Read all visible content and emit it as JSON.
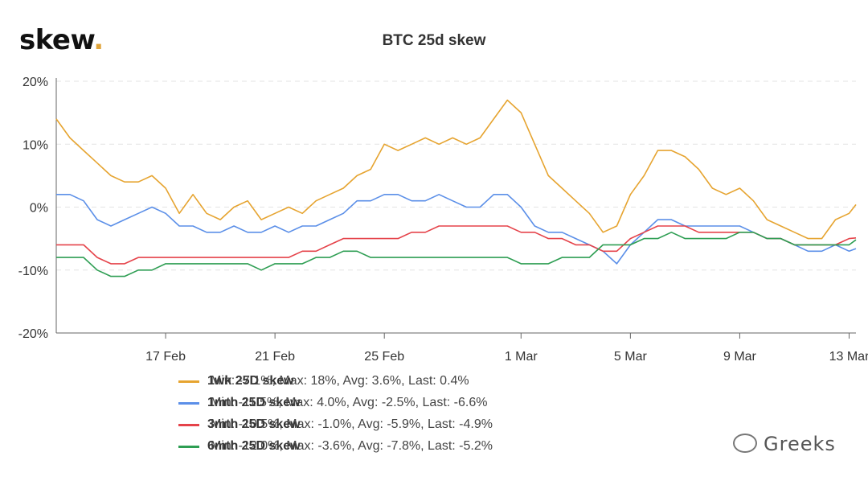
{
  "brand": {
    "name": "skew",
    "dot": "."
  },
  "watermark": {
    "text": "Greeks",
    "icon": "wechat-icon"
  },
  "chart_data": {
    "type": "line",
    "title": "BTC 25d skew",
    "xlabel": "",
    "ylabel": "",
    "ylim": [
      -20,
      20
    ],
    "yticks": [
      -20,
      -10,
      0,
      10,
      20
    ],
    "ytick_labels": [
      "-20%",
      "-10%",
      "0%",
      "10%",
      "20%"
    ],
    "xlim": [
      "2020-02-13",
      "2020-03-13"
    ],
    "xtick_labels": [
      {
        "date": "2020-02-17",
        "label": "17 Feb"
      },
      {
        "date": "2020-02-21",
        "label": "21 Feb"
      },
      {
        "date": "2020-02-25",
        "label": "25 Feb"
      },
      {
        "date": "2020-03-01",
        "label": "1 Mar"
      },
      {
        "date": "2020-03-05",
        "label": "5 Mar"
      },
      {
        "date": "2020-03-09",
        "label": "9 Mar"
      },
      {
        "date": "2020-03-13",
        "label": "13 Mar"
      }
    ],
    "grid": "horizontal dashed",
    "legend_position": "bottom",
    "series": [
      {
        "name": "1wk 25D skew",
        "color": "#e6a430",
        "stats": "Min: -7.1%, Max: 18%, Avg: 3.6%, Last: 0.4%",
        "points": [
          [
            "2020-02-13 00:00",
            14
          ],
          [
            "2020-02-13 12:00",
            11
          ],
          [
            "2020-02-14 00:00",
            9
          ],
          [
            "2020-02-14 12:00",
            7
          ],
          [
            "2020-02-15 00:00",
            5
          ],
          [
            "2020-02-15 12:00",
            4
          ],
          [
            "2020-02-16 00:00",
            4
          ],
          [
            "2020-02-16 12:00",
            5
          ],
          [
            "2020-02-17 00:00",
            3
          ],
          [
            "2020-02-17 12:00",
            -1
          ],
          [
            "2020-02-18 00:00",
            2
          ],
          [
            "2020-02-18 12:00",
            -1
          ],
          [
            "2020-02-19 00:00",
            -2
          ],
          [
            "2020-02-19 12:00",
            0
          ],
          [
            "2020-02-20 00:00",
            1
          ],
          [
            "2020-02-20 12:00",
            -2
          ],
          [
            "2020-02-21 00:00",
            -1
          ],
          [
            "2020-02-21 12:00",
            0
          ],
          [
            "2020-02-22 00:00",
            -1
          ],
          [
            "2020-02-22 12:00",
            1
          ],
          [
            "2020-02-23 00:00",
            2
          ],
          [
            "2020-02-23 12:00",
            3
          ],
          [
            "2020-02-24 00:00",
            5
          ],
          [
            "2020-02-24 12:00",
            6
          ],
          [
            "2020-02-25 00:00",
            10
          ],
          [
            "2020-02-25 12:00",
            9
          ],
          [
            "2020-02-26 00:00",
            10
          ],
          [
            "2020-02-26 12:00",
            11
          ],
          [
            "2020-02-27 00:00",
            10
          ],
          [
            "2020-02-27 12:00",
            11
          ],
          [
            "2020-02-28 00:00",
            10
          ],
          [
            "2020-02-28 12:00",
            11
          ],
          [
            "2020-02-29 00:00",
            14
          ],
          [
            "2020-02-29 12:00",
            17
          ],
          [
            "2020-03-01 00:00",
            15
          ],
          [
            "2020-03-01 12:00",
            10
          ],
          [
            "2020-03-02 00:00",
            5
          ],
          [
            "2020-03-02 12:00",
            3
          ],
          [
            "2020-03-03 00:00",
            1
          ],
          [
            "2020-03-03 12:00",
            -1
          ],
          [
            "2020-03-04 00:00",
            -4
          ],
          [
            "2020-03-04 12:00",
            -3
          ],
          [
            "2020-03-05 00:00",
            2
          ],
          [
            "2020-03-05 12:00",
            5
          ],
          [
            "2020-03-06 00:00",
            9
          ],
          [
            "2020-03-06 12:00",
            9
          ],
          [
            "2020-03-07 00:00",
            8
          ],
          [
            "2020-03-07 12:00",
            6
          ],
          [
            "2020-03-08 00:00",
            3
          ],
          [
            "2020-03-08 12:00",
            2
          ],
          [
            "2020-03-09 00:00",
            3
          ],
          [
            "2020-03-09 12:00",
            1
          ],
          [
            "2020-03-10 00:00",
            -2
          ],
          [
            "2020-03-10 12:00",
            -3
          ],
          [
            "2020-03-11 00:00",
            -4
          ],
          [
            "2020-03-11 12:00",
            -5
          ],
          [
            "2020-03-12 00:00",
            -5
          ],
          [
            "2020-03-12 12:00",
            -2
          ],
          [
            "2020-03-13 00:00",
            -1
          ],
          [
            "2020-03-13 06:00",
            0.4
          ]
        ]
      },
      {
        "name": "1mth 25D skew",
        "color": "#5b8fe8",
        "stats": "Min: -11.5%, Max: 4.0%, Avg: -2.5%, Last: -6.6%",
        "points": [
          [
            "2020-02-13 00:00",
            2
          ],
          [
            "2020-02-13 12:00",
            2
          ],
          [
            "2020-02-14 00:00",
            1
          ],
          [
            "2020-02-14 12:00",
            -2
          ],
          [
            "2020-02-15 00:00",
            -3
          ],
          [
            "2020-02-15 12:00",
            -2
          ],
          [
            "2020-02-16 00:00",
            -1
          ],
          [
            "2020-02-16 12:00",
            0
          ],
          [
            "2020-02-17 00:00",
            -1
          ],
          [
            "2020-02-17 12:00",
            -3
          ],
          [
            "2020-02-18 00:00",
            -3
          ],
          [
            "2020-02-18 12:00",
            -4
          ],
          [
            "2020-02-19 00:00",
            -4
          ],
          [
            "2020-02-19 12:00",
            -3
          ],
          [
            "2020-02-20 00:00",
            -4
          ],
          [
            "2020-02-20 12:00",
            -4
          ],
          [
            "2020-02-21 00:00",
            -3
          ],
          [
            "2020-02-21 12:00",
            -4
          ],
          [
            "2020-02-22 00:00",
            -3
          ],
          [
            "2020-02-22 12:00",
            -3
          ],
          [
            "2020-02-23 00:00",
            -2
          ],
          [
            "2020-02-23 12:00",
            -1
          ],
          [
            "2020-02-24 00:00",
            1
          ],
          [
            "2020-02-24 12:00",
            1
          ],
          [
            "2020-02-25 00:00",
            2
          ],
          [
            "2020-02-25 12:00",
            2
          ],
          [
            "2020-02-26 00:00",
            1
          ],
          [
            "2020-02-26 12:00",
            1
          ],
          [
            "2020-02-27 00:00",
            2
          ],
          [
            "2020-02-27 12:00",
            1
          ],
          [
            "2020-02-28 00:00",
            0
          ],
          [
            "2020-02-28 12:00",
            0
          ],
          [
            "2020-02-29 00:00",
            2
          ],
          [
            "2020-02-29 12:00",
            2
          ],
          [
            "2020-03-01 00:00",
            0
          ],
          [
            "2020-03-01 12:00",
            -3
          ],
          [
            "2020-03-02 00:00",
            -4
          ],
          [
            "2020-03-02 12:00",
            -4
          ],
          [
            "2020-03-03 00:00",
            -5
          ],
          [
            "2020-03-03 12:00",
            -6
          ],
          [
            "2020-03-04 00:00",
            -7
          ],
          [
            "2020-03-04 12:00",
            -9
          ],
          [
            "2020-03-05 00:00",
            -6
          ],
          [
            "2020-03-05 12:00",
            -4
          ],
          [
            "2020-03-06 00:00",
            -2
          ],
          [
            "2020-03-06 12:00",
            -2
          ],
          [
            "2020-03-07 00:00",
            -3
          ],
          [
            "2020-03-07 12:00",
            -3
          ],
          [
            "2020-03-08 00:00",
            -3
          ],
          [
            "2020-03-08 12:00",
            -3
          ],
          [
            "2020-03-09 00:00",
            -3
          ],
          [
            "2020-03-09 12:00",
            -4
          ],
          [
            "2020-03-10 00:00",
            -5
          ],
          [
            "2020-03-10 12:00",
            -5
          ],
          [
            "2020-03-11 00:00",
            -6
          ],
          [
            "2020-03-11 12:00",
            -7
          ],
          [
            "2020-03-12 00:00",
            -7
          ],
          [
            "2020-03-12 12:00",
            -6
          ],
          [
            "2020-03-13 00:00",
            -7
          ],
          [
            "2020-03-13 06:00",
            -6.6
          ]
        ]
      },
      {
        "name": "3mth 25D skew",
        "color": "#e5434a",
        "stats": "Min: -10.5%, Max: -1.0%, Avg: -5.9%, Last: -4.9%",
        "points": [
          [
            "2020-02-13 00:00",
            -6
          ],
          [
            "2020-02-13 12:00",
            -6
          ],
          [
            "2020-02-14 00:00",
            -6
          ],
          [
            "2020-02-14 12:00",
            -8
          ],
          [
            "2020-02-15 00:00",
            -9
          ],
          [
            "2020-02-15 12:00",
            -9
          ],
          [
            "2020-02-16 00:00",
            -8
          ],
          [
            "2020-02-16 12:00",
            -8
          ],
          [
            "2020-02-17 00:00",
            -8
          ],
          [
            "2020-02-17 12:00",
            -8
          ],
          [
            "2020-02-18 00:00",
            -8
          ],
          [
            "2020-02-18 12:00",
            -8
          ],
          [
            "2020-02-19 00:00",
            -8
          ],
          [
            "2020-02-19 12:00",
            -8
          ],
          [
            "2020-02-20 00:00",
            -8
          ],
          [
            "2020-02-20 12:00",
            -8
          ],
          [
            "2020-02-21 00:00",
            -8
          ],
          [
            "2020-02-21 12:00",
            -8
          ],
          [
            "2020-02-22 00:00",
            -7
          ],
          [
            "2020-02-22 12:00",
            -7
          ],
          [
            "2020-02-23 00:00",
            -6
          ],
          [
            "2020-02-23 12:00",
            -5
          ],
          [
            "2020-02-24 00:00",
            -5
          ],
          [
            "2020-02-24 12:00",
            -5
          ],
          [
            "2020-02-25 00:00",
            -5
          ],
          [
            "2020-02-25 12:00",
            -5
          ],
          [
            "2020-02-26 00:00",
            -4
          ],
          [
            "2020-02-26 12:00",
            -4
          ],
          [
            "2020-02-27 00:00",
            -3
          ],
          [
            "2020-02-27 12:00",
            -3
          ],
          [
            "2020-02-28 00:00",
            -3
          ],
          [
            "2020-02-28 12:00",
            -3
          ],
          [
            "2020-02-29 00:00",
            -3
          ],
          [
            "2020-02-29 12:00",
            -3
          ],
          [
            "2020-03-01 00:00",
            -4
          ],
          [
            "2020-03-01 12:00",
            -4
          ],
          [
            "2020-03-02 00:00",
            -5
          ],
          [
            "2020-03-02 12:00",
            -5
          ],
          [
            "2020-03-03 00:00",
            -6
          ],
          [
            "2020-03-03 12:00",
            -6
          ],
          [
            "2020-03-04 00:00",
            -7
          ],
          [
            "2020-03-04 12:00",
            -7
          ],
          [
            "2020-03-05 00:00",
            -5
          ],
          [
            "2020-03-05 12:00",
            -4
          ],
          [
            "2020-03-06 00:00",
            -3
          ],
          [
            "2020-03-06 12:00",
            -3
          ],
          [
            "2020-03-07 00:00",
            -3
          ],
          [
            "2020-03-07 12:00",
            -4
          ],
          [
            "2020-03-08 00:00",
            -4
          ],
          [
            "2020-03-08 12:00",
            -4
          ],
          [
            "2020-03-09 00:00",
            -4
          ],
          [
            "2020-03-09 12:00",
            -4
          ],
          [
            "2020-03-10 00:00",
            -5
          ],
          [
            "2020-03-10 12:00",
            -5
          ],
          [
            "2020-03-11 00:00",
            -6
          ],
          [
            "2020-03-11 12:00",
            -6
          ],
          [
            "2020-03-12 00:00",
            -6
          ],
          [
            "2020-03-12 12:00",
            -6
          ],
          [
            "2020-03-13 00:00",
            -5
          ],
          [
            "2020-03-13 06:00",
            -4.9
          ]
        ]
      },
      {
        "name": "6mth 25D skew",
        "color": "#2e9e53",
        "stats": "Min: -12.0%, Max: -3.6%, Avg: -7.8%, Last: -5.2%",
        "points": [
          [
            "2020-02-13 00:00",
            -8
          ],
          [
            "2020-02-13 12:00",
            -8
          ],
          [
            "2020-02-14 00:00",
            -8
          ],
          [
            "2020-02-14 12:00",
            -10
          ],
          [
            "2020-02-15 00:00",
            -11
          ],
          [
            "2020-02-15 12:00",
            -11
          ],
          [
            "2020-02-16 00:00",
            -10
          ],
          [
            "2020-02-16 12:00",
            -10
          ],
          [
            "2020-02-17 00:00",
            -9
          ],
          [
            "2020-02-17 12:00",
            -9
          ],
          [
            "2020-02-18 00:00",
            -9
          ],
          [
            "2020-02-18 12:00",
            -9
          ],
          [
            "2020-02-19 00:00",
            -9
          ],
          [
            "2020-02-19 12:00",
            -9
          ],
          [
            "2020-02-20 00:00",
            -9
          ],
          [
            "2020-02-20 12:00",
            -10
          ],
          [
            "2020-02-21 00:00",
            -9
          ],
          [
            "2020-02-21 12:00",
            -9
          ],
          [
            "2020-02-22 00:00",
            -9
          ],
          [
            "2020-02-22 12:00",
            -8
          ],
          [
            "2020-02-23 00:00",
            -8
          ],
          [
            "2020-02-23 12:00",
            -7
          ],
          [
            "2020-02-24 00:00",
            -7
          ],
          [
            "2020-02-24 12:00",
            -8
          ],
          [
            "2020-02-25 00:00",
            -8
          ],
          [
            "2020-02-25 12:00",
            -8
          ],
          [
            "2020-02-26 00:00",
            -8
          ],
          [
            "2020-02-26 12:00",
            -8
          ],
          [
            "2020-02-27 00:00",
            -8
          ],
          [
            "2020-02-27 12:00",
            -8
          ],
          [
            "2020-02-28 00:00",
            -8
          ],
          [
            "2020-02-28 12:00",
            -8
          ],
          [
            "2020-02-29 00:00",
            -8
          ],
          [
            "2020-02-29 12:00",
            -8
          ],
          [
            "2020-03-01 00:00",
            -9
          ],
          [
            "2020-03-01 12:00",
            -9
          ],
          [
            "2020-03-02 00:00",
            -9
          ],
          [
            "2020-03-02 12:00",
            -8
          ],
          [
            "2020-03-03 00:00",
            -8
          ],
          [
            "2020-03-03 12:00",
            -8
          ],
          [
            "2020-03-04 00:00",
            -6
          ],
          [
            "2020-03-04 12:00",
            -6
          ],
          [
            "2020-03-05 00:00",
            -6
          ],
          [
            "2020-03-05 12:00",
            -5
          ],
          [
            "2020-03-06 00:00",
            -5
          ],
          [
            "2020-03-06 12:00",
            -4
          ],
          [
            "2020-03-07 00:00",
            -5
          ],
          [
            "2020-03-07 12:00",
            -5
          ],
          [
            "2020-03-08 00:00",
            -5
          ],
          [
            "2020-03-08 12:00",
            -5
          ],
          [
            "2020-03-09 00:00",
            -4
          ],
          [
            "2020-03-09 12:00",
            -4
          ],
          [
            "2020-03-10 00:00",
            -5
          ],
          [
            "2020-03-10 12:00",
            -5
          ],
          [
            "2020-03-11 00:00",
            -6
          ],
          [
            "2020-03-11 12:00",
            -6
          ],
          [
            "2020-03-12 00:00",
            -6
          ],
          [
            "2020-03-12 12:00",
            -6
          ],
          [
            "2020-03-13 00:00",
            -6
          ],
          [
            "2020-03-13 06:00",
            -5.2
          ]
        ]
      }
    ]
  }
}
